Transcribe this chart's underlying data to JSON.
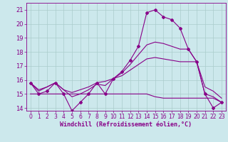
{
  "xlabel": "Windchill (Refroidissement éolien,°C)",
  "bg_color": "#cce8ec",
  "line_color": "#880088",
  "grid_color": "#aacccc",
  "x_hours": [
    0,
    1,
    2,
    3,
    4,
    5,
    6,
    7,
    8,
    9,
    10,
    11,
    12,
    13,
    14,
    15,
    16,
    17,
    18,
    19,
    20,
    21,
    22,
    23
  ],
  "temp_main": [
    15.8,
    15.0,
    15.2,
    15.8,
    15.0,
    13.8,
    14.4,
    15.0,
    15.8,
    15.0,
    16.1,
    16.6,
    17.4,
    18.4,
    20.8,
    21.0,
    20.5,
    20.3,
    19.7,
    18.2,
    17.3,
    15.0,
    14.0,
    14.4
  ],
  "line2": [
    15.8,
    15.2,
    15.5,
    15.8,
    15.3,
    14.8,
    15.0,
    15.3,
    15.7,
    15.6,
    16.1,
    16.5,
    17.1,
    17.8,
    18.5,
    18.7,
    18.6,
    18.4,
    18.2,
    18.2,
    17.3,
    15.0,
    14.8,
    14.4
  ],
  "line3": [
    15.8,
    15.3,
    15.5,
    15.8,
    15.3,
    15.1,
    15.3,
    15.5,
    15.8,
    15.9,
    16.1,
    16.3,
    16.7,
    17.1,
    17.5,
    17.6,
    17.5,
    17.4,
    17.3,
    17.3,
    17.3,
    15.5,
    15.2,
    14.7
  ],
  "line4": [
    15.0,
    15.0,
    15.0,
    15.0,
    15.0,
    15.0,
    15.0,
    15.0,
    15.0,
    15.0,
    15.0,
    15.0,
    15.0,
    15.0,
    15.0,
    14.8,
    14.7,
    14.7,
    14.7,
    14.7,
    14.7,
    14.7,
    14.7,
    14.4
  ],
  "ylim": [
    13.8,
    21.5
  ],
  "yticks": [
    14,
    15,
    16,
    17,
    18,
    19,
    20,
    21
  ],
  "xticks": [
    0,
    1,
    2,
    3,
    4,
    5,
    6,
    7,
    8,
    9,
    10,
    11,
    12,
    13,
    14,
    15,
    16,
    17,
    18,
    19,
    20,
    21,
    22,
    23
  ]
}
